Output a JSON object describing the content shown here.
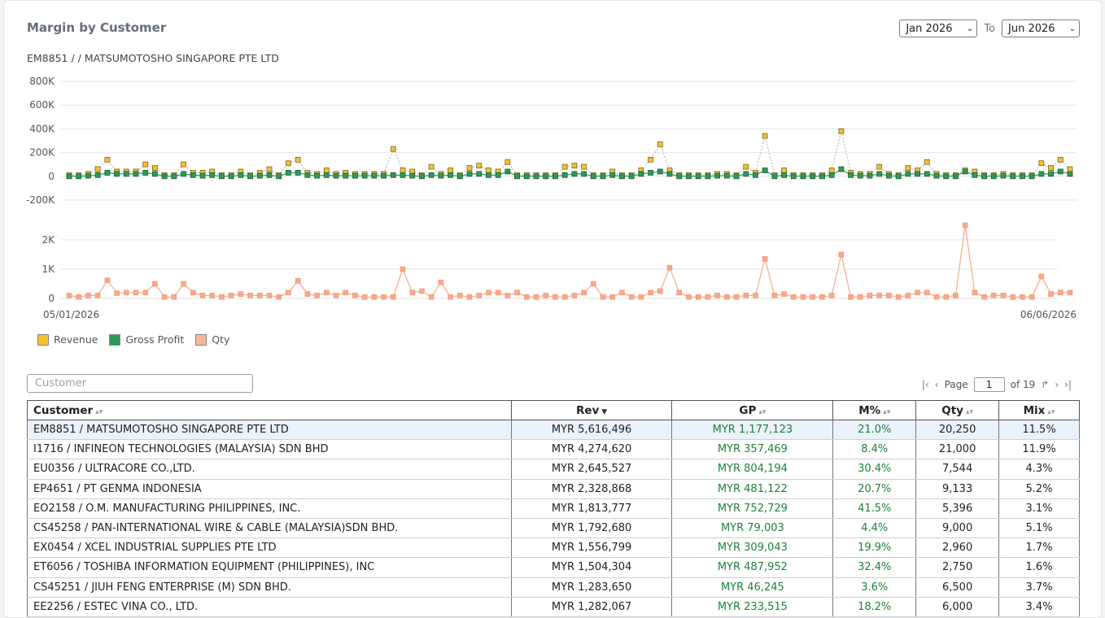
{
  "header": {
    "title": "Margin by Customer",
    "from_month": "Jan 2026",
    "to_label": "To",
    "to_month": "Jun 2026"
  },
  "subtitle": {
    "code": "EM8851",
    "rest": " / / MATSUMOTOSHO SINGAPORE PTE LTD"
  },
  "chart_data": [
    {
      "type": "line",
      "x_start_label": "05/01/2026",
      "x_end_label": "06/06/2026",
      "y_ticks": [
        "800K",
        "600K",
        "400K",
        "200K",
        "0",
        "-200K"
      ],
      "ylim": [
        -200000,
        800000
      ],
      "grid": true,
      "series": [
        {
          "name": "Revenue",
          "color": "#f2c12e",
          "values": [
            10000,
            10000,
            20000,
            60000,
            140000,
            40000,
            40000,
            40000,
            100000,
            70000,
            10000,
            10000,
            100000,
            30000,
            30000,
            40000,
            10000,
            10000,
            40000,
            10000,
            30000,
            60000,
            10000,
            110000,
            140000,
            30000,
            20000,
            50000,
            20000,
            30000,
            20000,
            20000,
            20000,
            20000,
            230000,
            50000,
            40000,
            10000,
            80000,
            20000,
            50000,
            10000,
            70000,
            90000,
            50000,
            40000,
            120000,
            10000,
            10000,
            10000,
            10000,
            10000,
            80000,
            90000,
            80000,
            10000,
            10000,
            40000,
            10000,
            10000,
            50000,
            140000,
            270000,
            50000,
            10000,
            10000,
            10000,
            10000,
            20000,
            20000,
            10000,
            80000,
            30000,
            340000,
            10000,
            50000,
            10000,
            10000,
            10000,
            10000,
            50000,
            380000,
            30000,
            20000,
            20000,
            80000,
            20000,
            10000,
            70000,
            50000,
            120000,
            20000,
            10000,
            10000,
            50000,
            40000,
            10000,
            10000,
            20000,
            10000,
            10000,
            10000,
            110000,
            70000,
            140000,
            60000
          ]
        },
        {
          "name": "Gross Profit",
          "color": "#2e9a57",
          "values": [
            0,
            0,
            5000,
            10000,
            30000,
            20000,
            20000,
            20000,
            30000,
            20000,
            0,
            0,
            20000,
            10000,
            5000,
            10000,
            0,
            0,
            10000,
            0,
            5000,
            10000,
            0,
            30000,
            30000,
            10000,
            5000,
            10000,
            5000,
            5000,
            5000,
            5000,
            5000,
            5000,
            10000,
            10000,
            5000,
            0,
            10000,
            5000,
            10000,
            0,
            20000,
            20000,
            10000,
            10000,
            40000,
            0,
            0,
            0,
            0,
            0,
            10000,
            20000,
            20000,
            0,
            0,
            10000,
            0,
            0,
            20000,
            30000,
            40000,
            20000,
            0,
            0,
            0,
            0,
            5000,
            5000,
            0,
            20000,
            10000,
            50000,
            0,
            10000,
            0,
            0,
            0,
            0,
            10000,
            60000,
            10000,
            5000,
            5000,
            20000,
            5000,
            0,
            20000,
            20000,
            20000,
            5000,
            0,
            0,
            40000,
            10000,
            0,
            0,
            5000,
            0,
            0,
            0,
            20000,
            20000,
            40000,
            20000
          ]
        }
      ]
    },
    {
      "type": "line",
      "y_ticks": [
        "2K",
        "1K",
        "0"
      ],
      "ylim": [
        0,
        2500
      ],
      "grid": true,
      "series": [
        {
          "name": "Qty",
          "color": "#f7a98a",
          "values": [
            100,
            50,
            100,
            100,
            620,
            180,
            200,
            200,
            200,
            500,
            50,
            50,
            500,
            200,
            100,
            100,
            50,
            100,
            150,
            100,
            100,
            100,
            50,
            200,
            600,
            150,
            100,
            200,
            100,
            200,
            100,
            50,
            50,
            50,
            50,
            1000,
            200,
            250,
            50,
            550,
            50,
            100,
            50,
            100,
            200,
            200,
            100,
            200,
            50,
            50,
            100,
            50,
            50,
            100,
            200,
            500,
            50,
            50,
            200,
            50,
            50,
            200,
            250,
            1050,
            200,
            50,
            50,
            50,
            100,
            50,
            50,
            100,
            100,
            1350,
            100,
            150,
            50,
            50,
            50,
            50,
            100,
            1500,
            50,
            50,
            100,
            100,
            100,
            50,
            100,
            200,
            200,
            50,
            50,
            100,
            2500,
            200,
            50,
            100,
            100,
            50,
            50,
            50,
            750,
            150,
            200,
            200
          ]
        }
      ]
    }
  ],
  "legend": [
    {
      "label": "Revenue",
      "color": "#f2c12e"
    },
    {
      "label": "Gross Profit",
      "color": "#2e9a57"
    },
    {
      "label": "Qty",
      "color": "#f7a98a"
    }
  ],
  "filter": {
    "placeholder": "Customer"
  },
  "pager": {
    "page_label": "Page",
    "page": "1",
    "of_label": "of 19"
  },
  "table": {
    "headers": [
      "Customer",
      "Rev",
      "GP",
      "M%",
      "Qty",
      "Mix"
    ],
    "rows": [
      [
        "EM8851 / MATSUMOTOSHO SINGAPORE PTE LTD",
        "MYR 5,616,496",
        "MYR 1,177,123",
        "21.0%",
        "20,250",
        "11.5%"
      ],
      [
        "I1716 / INFINEON TECHNOLOGIES (MALAYSIA) SDN BHD",
        "MYR 4,274,620",
        "MYR 357,469",
        "8.4%",
        "21,000",
        "11.9%"
      ],
      [
        "EU0356 / ULTRACORE CO.,LTD.",
        "MYR 2,645,527",
        "MYR 804,194",
        "30.4%",
        "7,544",
        "4.3%"
      ],
      [
        "EP4651 / PT GENMA INDONESIA",
        "MYR 2,328,868",
        "MYR 481,122",
        "20.7%",
        "9,133",
        "5.2%"
      ],
      [
        "EO2158 / O.M. MANUFACTURING PHILIPPINES, INC.",
        "MYR 1,813,777",
        "MYR 752,729",
        "41.5%",
        "5,396",
        "3.1%"
      ],
      [
        "CS45258 / PAN-INTERNATIONAL WIRE & CABLE (MALAYSIA)SDN BHD.",
        "MYR 1,792,680",
        "MYR 79,003",
        "4.4%",
        "9,000",
        "5.1%"
      ],
      [
        "EX0454 / XCEL INDUSTRIAL SUPPLIES PTE LTD",
        "MYR 1,556,799",
        "MYR 309,043",
        "19.9%",
        "2,960",
        "1.7%"
      ],
      [
        "ET6056 / TOSHIBA INFORMATION EQUIPMENT (PHILIPPINES), INC",
        "MYR 1,504,304",
        "MYR 487,952",
        "32.4%",
        "2,750",
        "1.6%"
      ],
      [
        "CS45251 / JIUH FENG ENTERPRISE (M) SDN BHD.",
        "MYR 1,283,650",
        "MYR 46,245",
        "3.6%",
        "6,500",
        "3.7%"
      ],
      [
        "EE2256 / ESTEC VINA CO., LTD.",
        "MYR 1,282,067",
        "MYR 233,515",
        "18.2%",
        "6,000",
        "3.4%"
      ]
    ]
  }
}
